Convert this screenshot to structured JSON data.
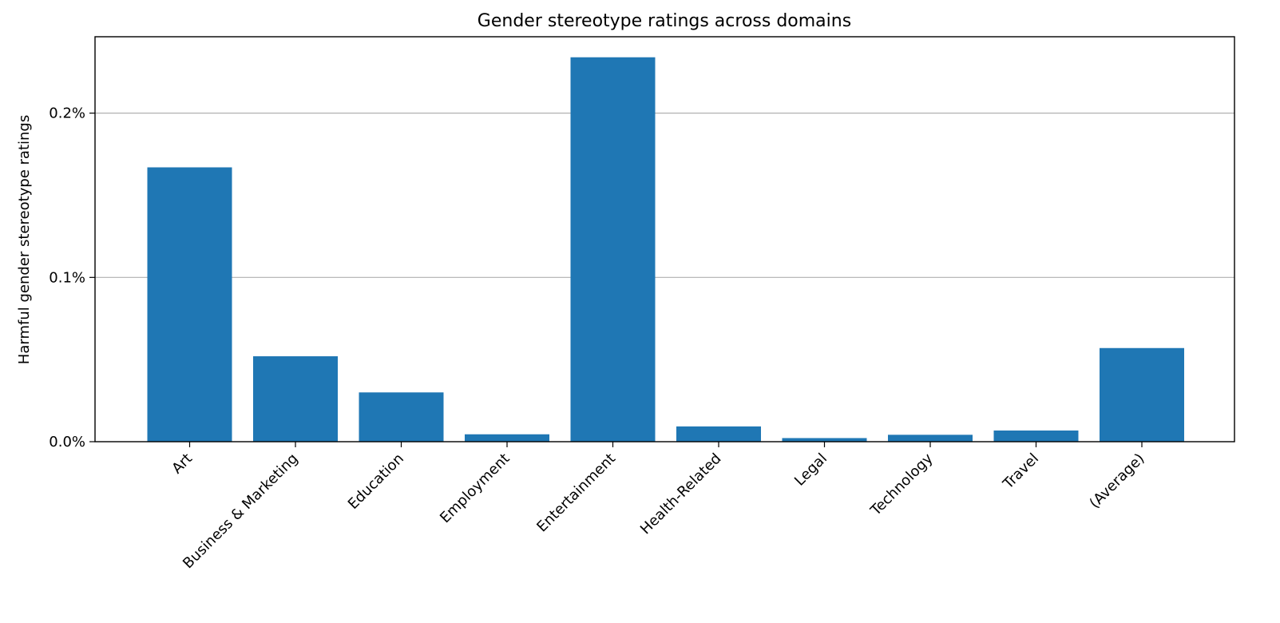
{
  "chart_data": {
    "type": "bar",
    "title": "Gender stereotype ratings across domains",
    "xlabel": "",
    "ylabel": "Harmful gender stereotype ratings",
    "categories": [
      "Art",
      "Business & Marketing",
      "Education",
      "Employment",
      "Entertainment",
      "Health-Related",
      "Legal",
      "Technology",
      "Travel",
      "(Average)"
    ],
    "values": [
      0.167,
      0.052,
      0.03,
      0.0045,
      0.234,
      0.0093,
      0.0022,
      0.0042,
      0.0068,
      0.057
    ],
    "value_unit": "%",
    "ylim": [
      0,
      0.2465
    ],
    "yticks": [
      0.0,
      0.1,
      0.2
    ],
    "ytick_labels": [
      "0.0%",
      "0.1%",
      "0.2%"
    ],
    "grid": "horizontal",
    "legend": "none",
    "bar_color": "#1f77b4"
  }
}
